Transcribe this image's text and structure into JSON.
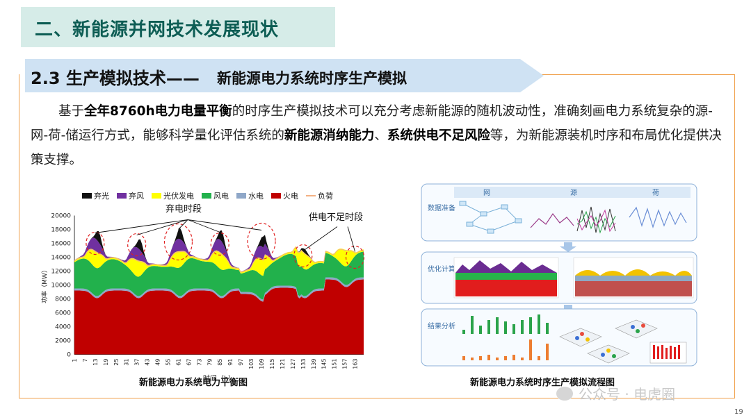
{
  "header": {
    "title": "二、新能源并网技术发展现状"
  },
  "section": {
    "number_title": "2.3 生产模拟技术——",
    "subtitle": "新能源电力系统时序生产模拟"
  },
  "paragraph": {
    "p1": "基于",
    "b1": "全年8760h电力电量平衡",
    "p2": "的时序生产模拟技术可以充分考虑新能源的随机波动性，准确刻画电力系统复杂的源-网-荷-储运行方式，能够科学量化评估系统的",
    "b2": "新能源消纳能力",
    "p3": "、",
    "b3": "系统供电不足风险",
    "p4": "等，为新能源装机时序和布局优化提供决策支撑。"
  },
  "chart_data": {
    "type": "area",
    "title": "",
    "xlabel": "时间（h）",
    "ylabel": "功率（MW）",
    "ylim": [
      0,
      20000
    ],
    "y_ticks": [
      0,
      2000,
      4000,
      6000,
      8000,
      10000,
      12000,
      14000,
      16000,
      18000,
      20000
    ],
    "x_ticks": [
      1,
      7,
      13,
      19,
      25,
      31,
      37,
      43,
      49,
      55,
      61,
      67,
      73,
      79,
      85,
      91,
      97,
      103,
      109,
      115,
      121,
      127,
      133,
      139,
      145,
      151,
      157,
      163
    ],
    "legend": [
      "弃光",
      "弃风",
      "光伏发电",
      "风电",
      "水电",
      "火电",
      "负荷"
    ],
    "colors": {
      "弃光": "#111111",
      "弃风": "#7030a0",
      "光伏发电": "#ffff00",
      "风电": "#22b14c",
      "水电": "#8fa7c8",
      "火电": "#c00000",
      "负荷": "#f4b183"
    },
    "annotations": [
      "弃电时段",
      "供电不足时段"
    ],
    "caption": "新能源电力系统电力平衡图"
  },
  "flow": {
    "columns": [
      "网",
      "源",
      "荷"
    ],
    "rows": [
      "数据准备",
      "优化计算",
      "结果分析"
    ],
    "caption": "新能源电力系统时序生产模拟流程图"
  },
  "watermark": "公众号 · 电虎圈",
  "page_number": "19"
}
